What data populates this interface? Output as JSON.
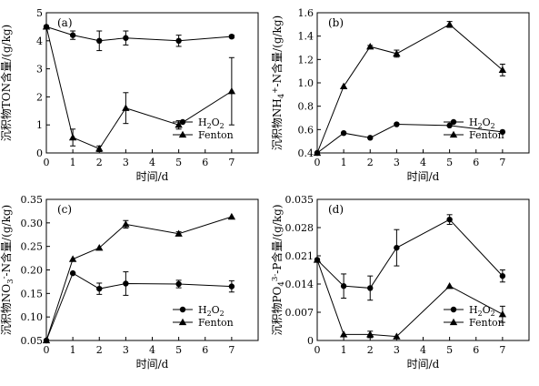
{
  "x_label": "时间/d",
  "marker_legend": {
    "circle": "circle",
    "triangle": "triangle"
  },
  "chart_data": [
    {
      "type": "line",
      "panel": "(a)",
      "ylabel": "沉积物TON含量/(g/kg)",
      "xlabel": "时间/d",
      "xlim": [
        0,
        8
      ],
      "xticks": [
        0,
        1,
        2,
        3,
        4,
        5,
        6,
        7
      ],
      "ylim": [
        0,
        5
      ],
      "yticks": [
        0,
        1,
        2,
        3,
        4,
        5
      ],
      "ytick_labels": [
        "0",
        "1",
        "2",
        "3",
        "4",
        "5"
      ],
      "legend_position": "bottom-right",
      "series": [
        {
          "name": "H2O2",
          "marker": "circle",
          "x": [
            0,
            1,
            2,
            3,
            5,
            7
          ],
          "y": [
            4.5,
            4.2,
            4.0,
            4.1,
            4.0,
            4.15
          ],
          "err": [
            0,
            0.15,
            0.35,
            0.25,
            0.2,
            0.05
          ]
        },
        {
          "name": "Fenton",
          "marker": "triangle",
          "x": [
            0,
            1,
            2,
            3,
            5,
            7
          ],
          "y": [
            4.5,
            0.55,
            0.15,
            1.6,
            1.0,
            2.2
          ],
          "err": [
            0,
            0.3,
            0.1,
            0.55,
            0.15,
            1.2
          ]
        }
      ]
    },
    {
      "type": "line",
      "panel": "(b)",
      "ylabel": "沉积物NH4+-N含量/(g/kg)",
      "xlabel": "时间/d",
      "xlim": [
        0,
        8
      ],
      "xticks": [
        0,
        1,
        2,
        3,
        4,
        5,
        6,
        7
      ],
      "ylim": [
        0.4,
        1.6
      ],
      "yticks": [
        0.4,
        0.6,
        0.8,
        1.0,
        1.2,
        1.4,
        1.6
      ],
      "ytick_labels": [
        "0.4",
        "0.6",
        "0.8",
        "1.0",
        "1.2",
        "1.4",
        "1.6"
      ],
      "legend_position": "bottom-right",
      "series": [
        {
          "name": "H2O2",
          "marker": "circle",
          "x": [
            0,
            1,
            2,
            3,
            5,
            7
          ],
          "y": [
            0.4,
            0.57,
            0.53,
            0.645,
            0.635,
            0.58
          ],
          "err": [
            0,
            0,
            0,
            0,
            0,
            0
          ]
        },
        {
          "name": "Fenton",
          "marker": "triangle",
          "x": [
            0,
            1,
            2,
            3,
            5,
            7
          ],
          "y": [
            0.4,
            0.97,
            1.31,
            1.25,
            1.5,
            1.11
          ],
          "err": [
            0,
            0,
            0.01,
            0.03,
            0.025,
            0.05
          ]
        }
      ]
    },
    {
      "type": "line",
      "panel": "(c)",
      "ylabel": "沉积物NO3--N含量/(g/kg)",
      "xlabel": "时间/d",
      "xlim": [
        0,
        8
      ],
      "xticks": [
        0,
        1,
        2,
        3,
        4,
        5,
        6,
        7
      ],
      "ylim": [
        0.05,
        0.35
      ],
      "yticks": [
        0.05,
        0.1,
        0.15,
        0.2,
        0.25,
        0.3,
        0.35
      ],
      "ytick_labels": [
        "0.05",
        "0.10",
        "0.15",
        "0.20",
        "0.25",
        "0.30",
        "0.35"
      ],
      "legend_position": "bottom-right",
      "series": [
        {
          "name": "H2O2",
          "marker": "circle",
          "x": [
            0,
            1,
            2,
            3,
            5,
            7
          ],
          "y": [
            0.05,
            0.193,
            0.16,
            0.171,
            0.17,
            0.165
          ],
          "err": [
            0,
            0,
            0.012,
            0.025,
            0.008,
            0.012
          ]
        },
        {
          "name": "Fenton",
          "marker": "triangle",
          "x": [
            0,
            1,
            2,
            3,
            5,
            7
          ],
          "y": [
            0.05,
            0.223,
            0.247,
            0.297,
            0.277,
            0.313
          ],
          "err": [
            0,
            0,
            0,
            0.008,
            0.004,
            0
          ]
        }
      ]
    },
    {
      "type": "line",
      "panel": "(d)",
      "ylabel": "沉积物PO43--P含量/(g/kg)",
      "xlabel": "时间/d",
      "xlim": [
        0,
        8
      ],
      "xticks": [
        0,
        1,
        2,
        3,
        4,
        5,
        6,
        7
      ],
      "ylim": [
        0,
        0.035
      ],
      "yticks": [
        0,
        0.007,
        0.014,
        0.021,
        0.028,
        0.035
      ],
      "ytick_labels": [
        "0",
        "0.007",
        "0.014",
        "0.021",
        "0.028",
        "0.035"
      ],
      "legend_position": "bottom-right",
      "series": [
        {
          "name": "H2O2",
          "marker": "circle",
          "x": [
            0,
            1,
            2,
            3,
            5,
            7
          ],
          "y": [
            0.02,
            0.0135,
            0.013,
            0.023,
            0.03,
            0.016
          ],
          "err": [
            0,
            0.003,
            0.003,
            0.0045,
            0.0012,
            0.0015
          ]
        },
        {
          "name": "Fenton",
          "marker": "triangle",
          "x": [
            0,
            1,
            2,
            3,
            5,
            7
          ],
          "y": [
            0.02,
            0.0015,
            0.0015,
            0.001,
            0.0135,
            0.0065
          ],
          "err": [
            0,
            0,
            0.0008,
            0,
            0,
            0.002
          ]
        }
      ]
    }
  ]
}
